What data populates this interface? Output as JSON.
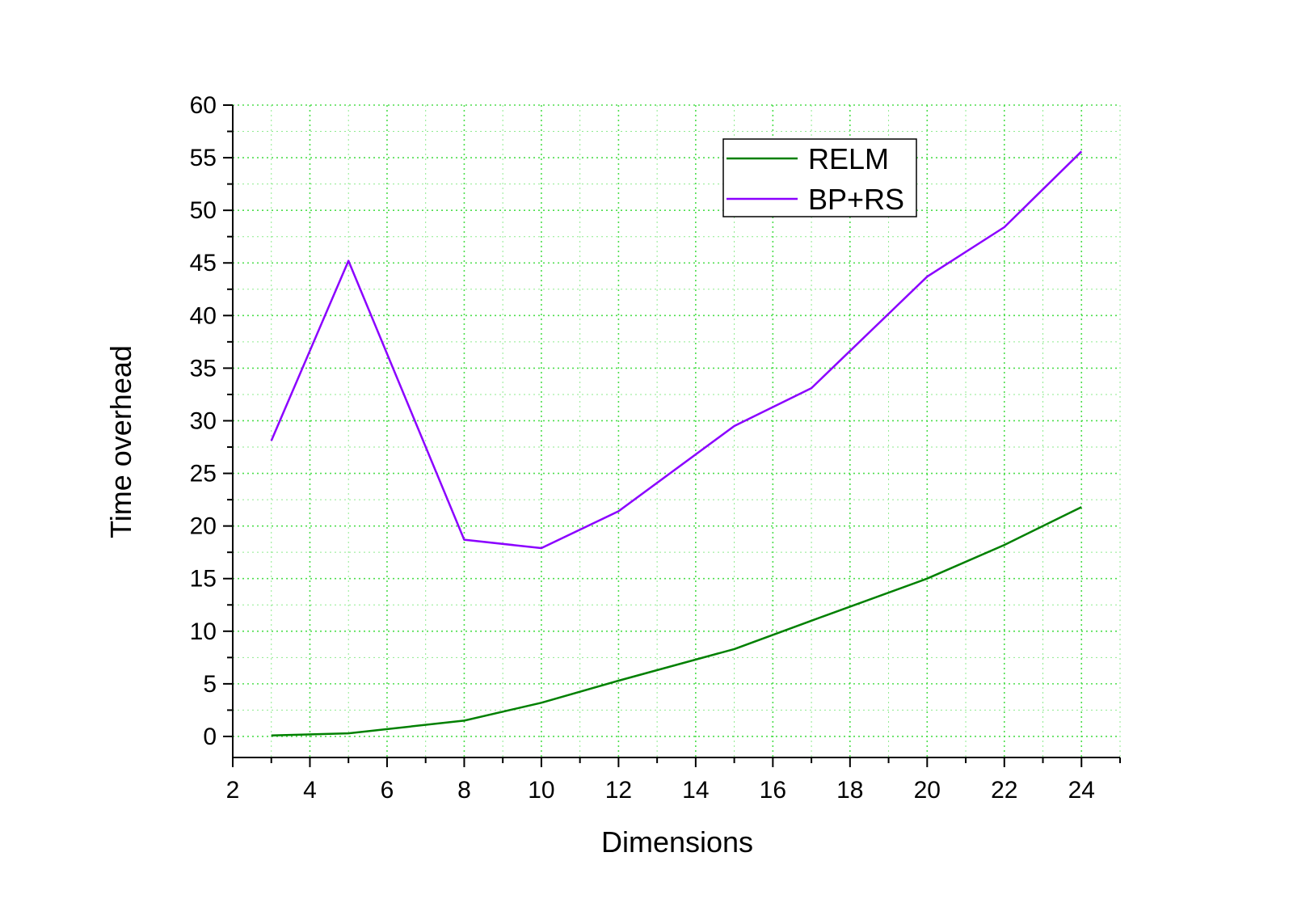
{
  "chart_data": {
    "type": "line",
    "xlabel": "Dimensions",
    "ylabel": "Time overhead",
    "xlim": [
      2,
      25
    ],
    "ylim": [
      -2,
      60
    ],
    "x_ticks": [
      2,
      4,
      6,
      8,
      10,
      12,
      14,
      16,
      18,
      20,
      22,
      24
    ],
    "y_ticks": [
      0,
      5,
      10,
      15,
      20,
      25,
      30,
      35,
      40,
      45,
      50,
      55,
      60
    ],
    "grid": true,
    "legend_position": "top-right",
    "series": [
      {
        "name": "RELM",
        "color": "#008000",
        "x": [
          3,
          5,
          8,
          10,
          12,
          15,
          17,
          20,
          22,
          24
        ],
        "values": [
          0.1,
          0.3,
          1.5,
          3.2,
          5.3,
          8.3,
          11.0,
          15.0,
          18.2,
          21.8
        ]
      },
      {
        "name": "BP+RS",
        "color": "#8B00FF",
        "x": [
          3,
          5,
          8,
          10,
          12,
          15,
          17,
          20,
          22,
          24
        ],
        "values": [
          28.1,
          45.2,
          18.7,
          17.9,
          21.4,
          29.5,
          33.1,
          43.7,
          48.4,
          55.6
        ]
      }
    ],
    "grid_color": "#44dd44"
  }
}
